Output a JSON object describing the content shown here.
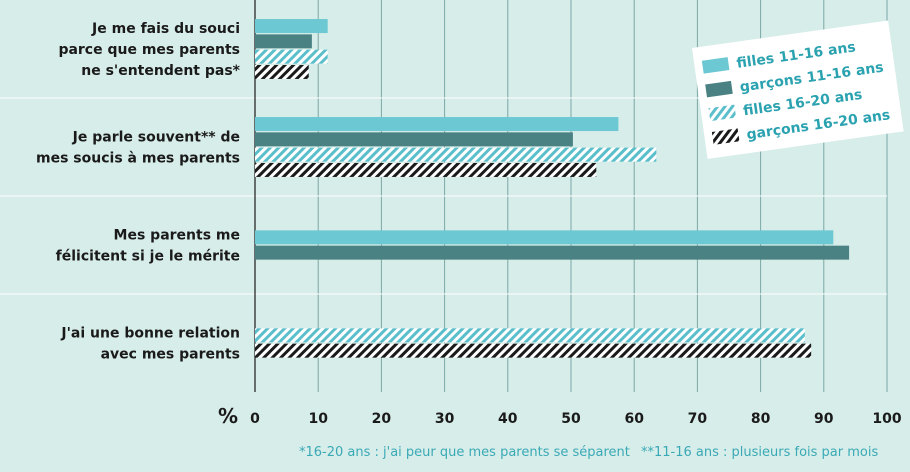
{
  "chart_data": {
    "type": "bar",
    "orientation": "horizontal",
    "categories": [
      [
        "Je me fais du souci",
        "parce que mes parents",
        "ne s'entendent pas*"
      ],
      [
        "Je parle souvent** de",
        "mes soucis à mes parents"
      ],
      [
        "Mes parents me",
        "félicitent si je le mérite"
      ],
      [
        "J'ai une bonne relation",
        "avec mes parents"
      ]
    ],
    "series": [
      {
        "name": "filles 11-16 ans",
        "values": [
          11.5,
          57.5,
          91.5,
          null
        ],
        "color": "#6cc8d2",
        "pattern": "solid"
      },
      {
        "name": "garçons 11-16 ans",
        "values": [
          9,
          50.3,
          94,
          null
        ],
        "color": "#4a8283",
        "pattern": "solid"
      },
      {
        "name": "filles 16-20 ans",
        "values": [
          11.5,
          63.5,
          null,
          87
        ],
        "color": "#5bbfcb",
        "pattern": "hatch-light"
      },
      {
        "name": "garçons 16-20 ans",
        "values": [
          8.5,
          54,
          null,
          88
        ],
        "color": "#1a1a1a",
        "pattern": "hatch-dark"
      }
    ],
    "xlim": [
      0,
      100
    ],
    "xticks": [
      0,
      10,
      20,
      30,
      40,
      50,
      60,
      70,
      80,
      90,
      100
    ],
    "xunit": "%",
    "grid": true,
    "legend_position": "top-right (rotated)",
    "footnotes": [
      "*16-20 ans : j'ai peur que mes parents se séparent",
      "**11-16 ans : plusieurs fois par mois"
    ]
  }
}
